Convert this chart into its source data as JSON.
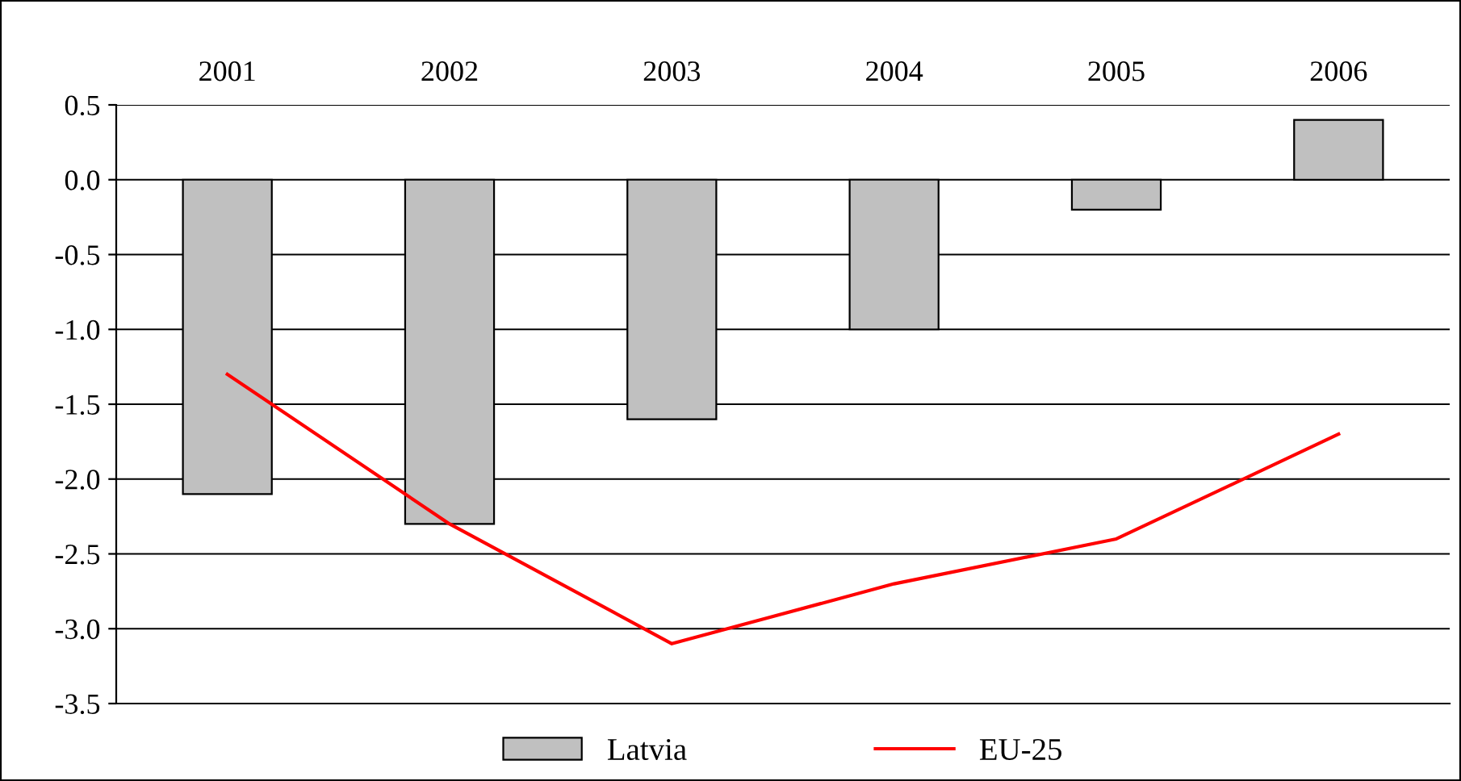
{
  "chart_data": {
    "type": "bar",
    "categories": [
      "2001",
      "2002",
      "2003",
      "2004",
      "2005",
      "2006"
    ],
    "series": [
      {
        "name": "Latvia",
        "color": "#c0c0c0",
        "values": [
          -2.1,
          -2.3,
          -1.6,
          -1.0,
          -0.2,
          0.4
        ]
      },
      {
        "name": "EU-25",
        "type": "line",
        "color": "#ff0000",
        "values": [
          -1.3,
          -2.3,
          -3.1,
          -2.7,
          -2.4,
          -1.7
        ]
      }
    ],
    "ylim": [
      -3.5,
      0.5
    ],
    "yticks": [
      {
        "value": 0.5,
        "label": "0.5"
      },
      {
        "value": 0.0,
        "label": "0.0"
      },
      {
        "value": -0.5,
        "label": "-0.5"
      },
      {
        "value": -1.0,
        "label": "-1.0"
      },
      {
        "value": -1.5,
        "label": "-1.5"
      },
      {
        "value": -2.0,
        "label": "-2.0"
      },
      {
        "value": -2.5,
        "label": "-2.5"
      },
      {
        "value": -3.0,
        "label": "-3.0"
      },
      {
        "value": -3.5,
        "label": "-3.5"
      }
    ],
    "grid": "y",
    "legend": "bottom",
    "marker": "none",
    "line_style": "solid"
  }
}
